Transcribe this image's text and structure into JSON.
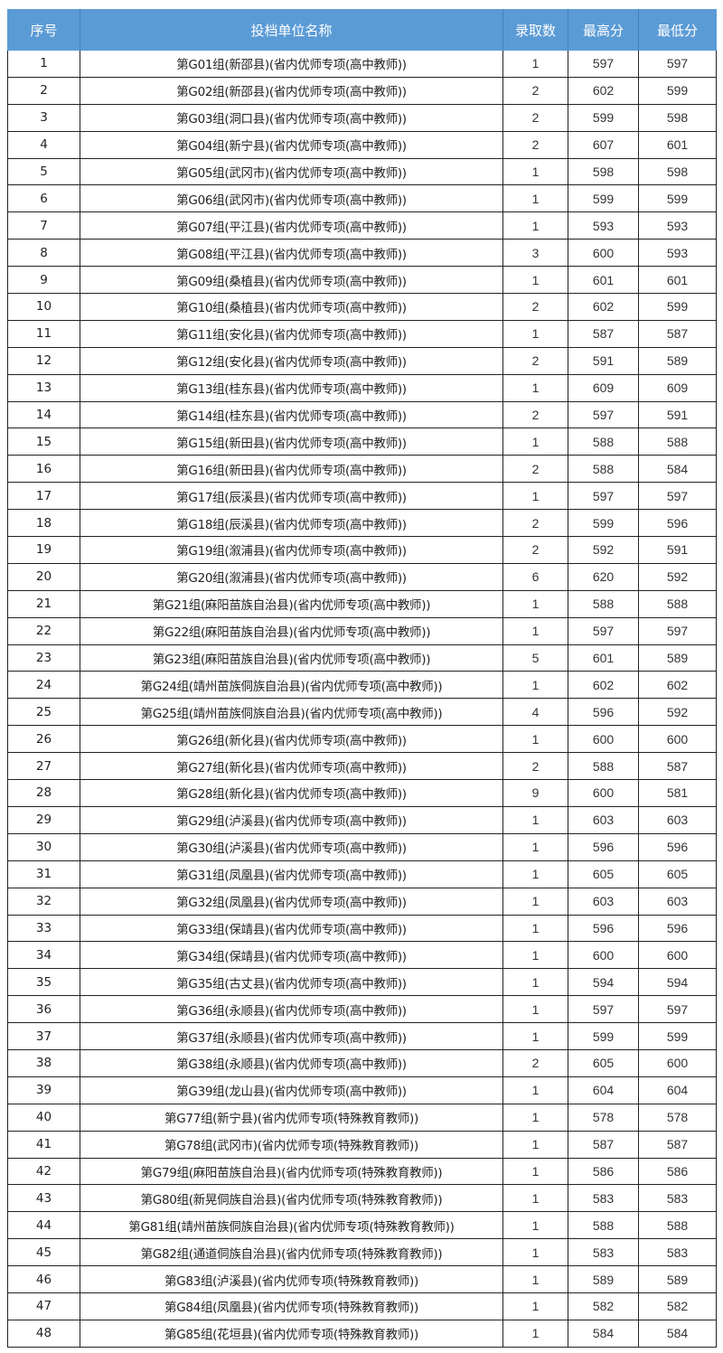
{
  "header_color": "#5b9bd5",
  "columns": [
    "序号",
    "投档单位名称",
    "录取数",
    "最高分",
    "最低分"
  ],
  "rows": [
    [
      "1",
      "第G01组(新邵县)(省内优师专项(高中教师))",
      "1",
      "597",
      "597"
    ],
    [
      "2",
      "第G02组(新邵县)(省内优师专项(高中教师))",
      "2",
      "602",
      "599"
    ],
    [
      "3",
      "第G03组(洞口县)(省内优师专项(高中教师))",
      "2",
      "599",
      "598"
    ],
    [
      "4",
      "第G04组(新宁县)(省内优师专项(高中教师))",
      "2",
      "607",
      "601"
    ],
    [
      "5",
      "第G05组(武冈市)(省内优师专项(高中教师))",
      "1",
      "598",
      "598"
    ],
    [
      "6",
      "第G06组(武冈市)(省内优师专项(高中教师))",
      "1",
      "599",
      "599"
    ],
    [
      "7",
      "第G07组(平江县)(省内优师专项(高中教师))",
      "1",
      "593",
      "593"
    ],
    [
      "8",
      "第G08组(平江县)(省内优师专项(高中教师))",
      "3",
      "600",
      "593"
    ],
    [
      "9",
      "第G09组(桑植县)(省内优师专项(高中教师))",
      "1",
      "601",
      "601"
    ],
    [
      "10",
      "第G10组(桑植县)(省内优师专项(高中教师))",
      "2",
      "602",
      "599"
    ],
    [
      "11",
      "第G11组(安化县)(省内优师专项(高中教师))",
      "1",
      "587",
      "587"
    ],
    [
      "12",
      "第G12组(安化县)(省内优师专项(高中教师))",
      "2",
      "591",
      "589"
    ],
    [
      "13",
      "第G13组(桂东县)(省内优师专项(高中教师))",
      "1",
      "609",
      "609"
    ],
    [
      "14",
      "第G14组(桂东县)(省内优师专项(高中教师))",
      "2",
      "597",
      "591"
    ],
    [
      "15",
      "第G15组(新田县)(省内优师专项(高中教师))",
      "1",
      "588",
      "588"
    ],
    [
      "16",
      "第G16组(新田县)(省内优师专项(高中教师))",
      "2",
      "588",
      "584"
    ],
    [
      "17",
      "第G17组(辰溪县)(省内优师专项(高中教师))",
      "1",
      "597",
      "597"
    ],
    [
      "18",
      "第G18组(辰溪县)(省内优师专项(高中教师))",
      "2",
      "599",
      "596"
    ],
    [
      "19",
      "第G19组(溆浦县)(省内优师专项(高中教师))",
      "2",
      "592",
      "591"
    ],
    [
      "20",
      "第G20组(溆浦县)(省内优师专项(高中教师))",
      "6",
      "620",
      "592"
    ],
    [
      "21",
      "第G21组(麻阳苗族自治县)(省内优师专项(高中教师))",
      "1",
      "588",
      "588"
    ],
    [
      "22",
      "第G22组(麻阳苗族自治县)(省内优师专项(高中教师))",
      "1",
      "597",
      "597"
    ],
    [
      "23",
      "第G23组(麻阳苗族自治县)(省内优师专项(高中教师))",
      "5",
      "601",
      "589"
    ],
    [
      "24",
      "第G24组(靖州苗族侗族自治县)(省内优师专项(高中教师))",
      "1",
      "602",
      "602"
    ],
    [
      "25",
      "第G25组(靖州苗族侗族自治县)(省内优师专项(高中教师))",
      "4",
      "596",
      "592"
    ],
    [
      "26",
      "第G26组(新化县)(省内优师专项(高中教师))",
      "1",
      "600",
      "600"
    ],
    [
      "27",
      "第G27组(新化县)(省内优师专项(高中教师))",
      "2",
      "588",
      "587"
    ],
    [
      "28",
      "第G28组(新化县)(省内优师专项(高中教师))",
      "9",
      "600",
      "581"
    ],
    [
      "29",
      "第G29组(泸溪县)(省内优师专项(高中教师))",
      "1",
      "603",
      "603"
    ],
    [
      "30",
      "第G30组(泸溪县)(省内优师专项(高中教师))",
      "1",
      "596",
      "596"
    ],
    [
      "31",
      "第G31组(凤凰县)(省内优师专项(高中教师))",
      "1",
      "605",
      "605"
    ],
    [
      "32",
      "第G32组(凤凰县)(省内优师专项(高中教师))",
      "1",
      "603",
      "603"
    ],
    [
      "33",
      "第G33组(保靖县)(省内优师专项(高中教师))",
      "1",
      "596",
      "596"
    ],
    [
      "34",
      "第G34组(保靖县)(省内优师专项(高中教师))",
      "1",
      "600",
      "600"
    ],
    [
      "35",
      "第G35组(古丈县)(省内优师专项(高中教师))",
      "1",
      "594",
      "594"
    ],
    [
      "36",
      "第G36组(永顺县)(省内优师专项(高中教师))",
      "1",
      "597",
      "597"
    ],
    [
      "37",
      "第G37组(永顺县)(省内优师专项(高中教师))",
      "1",
      "599",
      "599"
    ],
    [
      "38",
      "第G38组(永顺县)(省内优师专项(高中教师))",
      "2",
      "605",
      "600"
    ],
    [
      "39",
      "第G39组(龙山县)(省内优师专项(高中教师))",
      "1",
      "604",
      "604"
    ],
    [
      "40",
      "第G77组(新宁县)(省内优师专项(特殊教育教师))",
      "1",
      "578",
      "578"
    ],
    [
      "41",
      "第G78组(武冈市)(省内优师专项(特殊教育教师))",
      "1",
      "587",
      "587"
    ],
    [
      "42",
      "第G79组(麻阳苗族自治县)(省内优师专项(特殊教育教师))",
      "1",
      "586",
      "586"
    ],
    [
      "43",
      "第G80组(新晃侗族自治县)(省内优师专项(特殊教育教师))",
      "1",
      "583",
      "583"
    ],
    [
      "44",
      "第G81组(靖州苗族侗族自治县)(省内优师专项(特殊教育教师))",
      "1",
      "588",
      "588"
    ],
    [
      "45",
      "第G82组(通道侗族自治县)(省内优师专项(特殊教育教师))",
      "1",
      "583",
      "583"
    ],
    [
      "46",
      "第G83组(泸溪县)(省内优师专项(特殊教育教师))",
      "1",
      "589",
      "589"
    ],
    [
      "47",
      "第G84组(凤凰县)(省内优师专项(特殊教育教师))",
      "1",
      "582",
      "582"
    ],
    [
      "48",
      "第G85组(花垣县)(省内优师专项(特殊教育教师))",
      "1",
      "584",
      "584"
    ]
  ]
}
